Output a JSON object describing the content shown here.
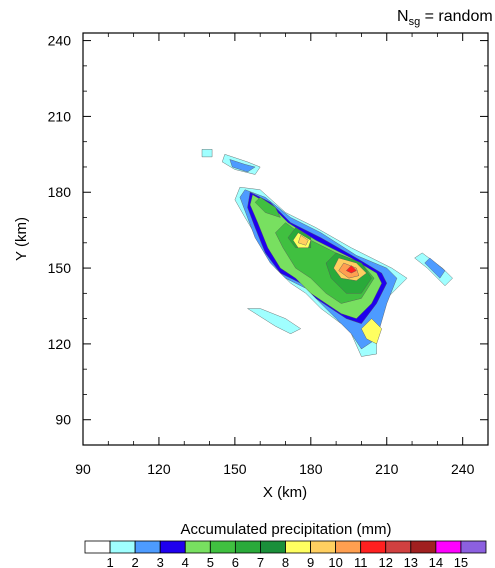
{
  "chart_data": {
    "type": "contour",
    "title_right": "N",
    "title_right_sub": "sg",
    "title_right_suffix": " = random",
    "xlabel": "X (km)",
    "ylabel": "Y (km)",
    "xlim": [
      90,
      250
    ],
    "ylim": [
      80,
      243
    ],
    "xticks": [
      90,
      120,
      150,
      180,
      210,
      240
    ],
    "yticks": [
      90,
      120,
      150,
      180,
      210,
      240
    ],
    "colorbar_label": "Accumulated precipitation (mm)",
    "colorbar_levels": [
      "1",
      "2",
      "3",
      "4",
      "5",
      "6",
      "7",
      "8",
      "9",
      "10",
      "11",
      "12",
      "13",
      "14",
      "15"
    ],
    "colorbar_colors": [
      "#ffffff",
      "#a0ffff",
      "#4d9bff",
      "#1f00ee",
      "#78e060",
      "#40c040",
      "#2aaa3a",
      "#1a8f3a",
      "#ffff60",
      "#ffcf60",
      "#ff9f50",
      "#ff2020",
      "#d04040",
      "#a02020",
      "#ff00ff",
      "#8c60e0"
    ],
    "contours": [
      {
        "level": 1,
        "color": "#a0ffff",
        "polygons": [
          [
            [
              152,
              182
            ],
            [
              160,
              181
            ],
            [
              170,
              172
            ],
            [
              182,
              166
            ],
            [
              196,
              158
            ],
            [
              212,
              150
            ],
            [
              218,
              146
            ],
            [
              210,
              138
            ],
            [
              206,
              124
            ],
            [
              206,
              116
            ],
            [
              200,
              115
            ],
            [
              196,
              124
            ],
            [
              192,
              128
            ],
            [
              184,
              134
            ],
            [
              178,
              140
            ],
            [
              172,
              144
            ],
            [
              166,
              150
            ],
            [
              160,
              160
            ],
            [
              154,
              170
            ],
            [
              150,
              177
            ]
          ],
          [
            [
              155,
              134
            ],
            [
              166,
              127
            ],
            [
              172,
              124
            ],
            [
              176,
              126
            ],
            [
              170,
              130
            ],
            [
              160,
              134
            ]
          ],
          [
            [
              224,
              156
            ],
            [
              232,
              150
            ],
            [
              236,
              146
            ],
            [
              233,
              143
            ],
            [
              226,
              150
            ],
            [
              221,
              154
            ]
          ],
          [
            [
              146,
              195
            ],
            [
              155,
              192
            ],
            [
              160,
              190
            ],
            [
              158,
              187
            ],
            [
              150,
              189
            ],
            [
              145,
              192
            ]
          ],
          [
            [
              137,
              197
            ],
            [
              141,
              197
            ],
            [
              141,
              194
            ],
            [
              137,
              194
            ]
          ]
        ]
      },
      {
        "level": 3,
        "color": "#4d9bff",
        "polygons": [
          [
            [
              154,
              181
            ],
            [
              162,
              178
            ],
            [
              172,
              170
            ],
            [
              184,
              164
            ],
            [
              198,
              155
            ],
            [
              210,
              150
            ],
            [
              214,
              146
            ],
            [
              210,
              136
            ],
            [
              206,
              122
            ],
            [
              200,
              118
            ],
            [
              196,
              124
            ],
            [
              190,
              130
            ],
            [
              184,
              136
            ],
            [
              178,
              142
            ],
            [
              170,
              146
            ],
            [
              164,
              152
            ],
            [
              158,
              162
            ],
            [
              155,
              170
            ],
            [
              152,
              178
            ]
          ],
          [
            [
              148,
              193
            ],
            [
              154,
              191
            ],
            [
              158,
              190
            ],
            [
              155,
              188
            ],
            [
              149,
              190
            ]
          ],
          [
            [
              227,
              154
            ],
            [
              233,
              149
            ],
            [
              231,
              146
            ],
            [
              225,
              152
            ]
          ]
        ]
      },
      {
        "level": 4,
        "color": "#1f00ee",
        "polygons": [
          [
            [
              156,
              180
            ],
            [
              164,
              176
            ],
            [
              172,
              168
            ],
            [
              184,
              162
            ],
            [
              198,
              154
            ],
            [
              208,
              148
            ],
            [
              210,
              144
            ],
            [
              206,
              136
            ],
            [
              200,
              128
            ],
            [
              194,
              130
            ],
            [
              188,
              134
            ],
            [
              182,
              138
            ],
            [
              176,
              144
            ],
            [
              168,
              148
            ],
            [
              162,
              156
            ],
            [
              158,
              166
            ],
            [
              155,
              174
            ]
          ]
        ]
      },
      {
        "level": 5,
        "color": "#78e060",
        "polygons": [
          [
            [
              157,
              179
            ],
            [
              164,
              175
            ],
            [
              171,
              168
            ],
            [
              182,
              161
            ],
            [
              196,
              154
            ],
            [
              206,
              148
            ],
            [
              208,
              144
            ],
            [
              204,
              136
            ],
            [
              198,
              130
            ],
            [
              192,
              132
            ],
            [
              186,
              136
            ],
            [
              180,
              140
            ],
            [
              174,
              146
            ],
            [
              168,
              150
            ],
            [
              163,
              158
            ],
            [
              159,
              168
            ],
            [
              156,
              175
            ]
          ]
        ]
      },
      {
        "level": 6,
        "color": "#40c040",
        "polygons": [
          [
            [
              170,
              168
            ],
            [
              178,
              162
            ],
            [
              190,
              156
            ],
            [
              200,
              152
            ],
            [
              205,
              146
            ],
            [
              200,
              138
            ],
            [
              192,
              136
            ],
            [
              186,
              140
            ],
            [
              180,
              146
            ],
            [
              174,
              150
            ],
            [
              169,
              158
            ],
            [
              166,
              164
            ]
          ],
          [
            [
              160,
              178
            ],
            [
              166,
              174
            ],
            [
              168,
              170
            ],
            [
              162,
              172
            ],
            [
              158,
              176
            ]
          ]
        ]
      },
      {
        "level": 7,
        "color": "#2aaa3a",
        "polygons": [
          [
            [
              190,
              156
            ],
            [
              200,
              152
            ],
            [
              204,
              146
            ],
            [
              200,
              140
            ],
            [
              194,
              140
            ],
            [
              188,
              146
            ],
            [
              186,
              152
            ]
          ],
          [
            [
              174,
              166
            ],
            [
              180,
              162
            ],
            [
              180,
              158
            ],
            [
              174,
              158
            ],
            [
              171,
              162
            ]
          ]
        ]
      },
      {
        "level": 9,
        "color": "#ffff60",
        "polygons": [
          [
            [
              204,
              130
            ],
            [
              208,
              126
            ],
            [
              206,
              120
            ],
            [
              202,
              122
            ],
            [
              200,
              126
            ]
          ],
          [
            [
              175,
              164
            ],
            [
              180,
              161
            ],
            [
              179,
              158
            ],
            [
              175,
              158
            ],
            [
              173,
              161
            ]
          ]
        ]
      },
      {
        "level": 10,
        "color": "#ffcf60",
        "polygons": [
          [
            [
              191,
              154
            ],
            [
              198,
              152
            ],
            [
              202,
              148
            ],
            [
              198,
              145
            ],
            [
              192,
              146
            ],
            [
              189,
              150
            ]
          ],
          [
            [
              176,
              163
            ],
            [
              179,
              161
            ],
            [
              178,
              159
            ],
            [
              175,
              160
            ]
          ]
        ]
      },
      {
        "level": 11,
        "color": "#ff9f50",
        "polygons": [
          [
            [
              193,
              152
            ],
            [
              198,
              150
            ],
            [
              199,
              147
            ],
            [
              195,
              146
            ],
            [
              191,
              149
            ]
          ]
        ]
      },
      {
        "level": 12,
        "color": "#ff2020",
        "polygons": [
          [
            [
              196,
              151
            ],
            [
              198,
              149
            ],
            [
              196,
              148
            ],
            [
              194,
              149
            ]
          ]
        ]
      }
    ]
  }
}
